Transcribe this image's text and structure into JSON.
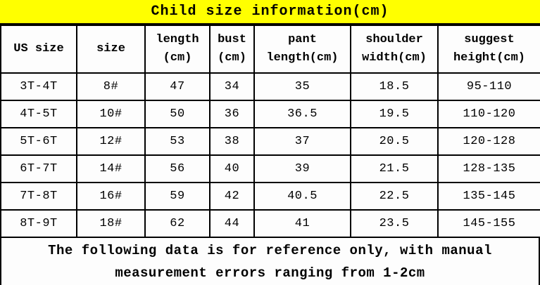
{
  "title": "Child size information(cm)",
  "table": {
    "columns": [
      {
        "line1": "US size",
        "line2": ""
      },
      {
        "line1": "size",
        "line2": ""
      },
      {
        "line1": "length",
        "line2": "(cm)"
      },
      {
        "line1": "bust",
        "line2": "(cm)"
      },
      {
        "line1": "pant",
        "line2": "length(cm)"
      },
      {
        "line1": "shoulder",
        "line2": "width(cm)"
      },
      {
        "line1": "suggest",
        "line2": "height(cm)"
      }
    ],
    "rows": [
      [
        "3T-4T",
        "8#",
        "47",
        "34",
        "35",
        "18.5",
        "95-110"
      ],
      [
        "4T-5T",
        "10#",
        "50",
        "36",
        "36.5",
        "19.5",
        "110-120"
      ],
      [
        "5T-6T",
        "12#",
        "53",
        "38",
        "37",
        "20.5",
        "120-128"
      ],
      [
        "6T-7T",
        "14#",
        "56",
        "40",
        "39",
        "21.5",
        "128-135"
      ],
      [
        "7T-8T",
        "16#",
        "59",
        "42",
        "40.5",
        "22.5",
        "135-145"
      ],
      [
        "8T-9T",
        "18#",
        "62",
        "44",
        "41",
        "23.5",
        "145-155"
      ]
    ]
  },
  "footer": {
    "line1": "The following data is for reference only, with manual",
    "line2": "measurement errors ranging from 1-2cm"
  },
  "colors": {
    "title_background": "#ffff00",
    "border": "#000000",
    "text": "#000000",
    "cell_background": "#fdfdfd"
  }
}
